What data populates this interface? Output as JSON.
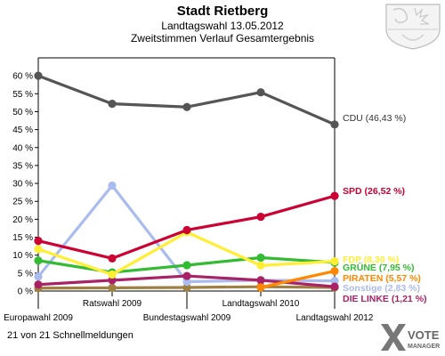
{
  "header": {
    "title": "Stadt Rietberg",
    "subtitle1": "Landtagswahl 13.05.2012",
    "subtitle2": "Zweitstimmen Verlauf Gesamtergebnis"
  },
  "footer": {
    "note": "21 von 21 Schnellmeldungen"
  },
  "brand": {
    "line1": "VOTE",
    "line2": "MANAGER"
  },
  "chart_data": {
    "type": "line",
    "title": "Stadt Rietberg",
    "subtitle": "Landtagswahl 13.05.2012 / Zweitstimmen Verlauf Gesamtergebnis",
    "categories": [
      "Europawahl 2009",
      "Ratswahl 2009",
      "Bundestagswahl 2009",
      "Landtagswahl 2010",
      "Landtagswahl 2012"
    ],
    "ylim": [
      0,
      65
    ],
    "yticks": [
      0,
      5,
      10,
      15,
      20,
      25,
      30,
      35,
      40,
      45,
      50,
      55,
      60
    ],
    "y_tick_suffix": " %",
    "grid": false,
    "series": [
      {
        "name": "CDU",
        "color": "#555555",
        "values": [
          60.0,
          52.2,
          51.3,
          55.4,
          46.43
        ],
        "label": "CDU (46,43 %)"
      },
      {
        "name": "SPD",
        "color": "#cc0033",
        "values": [
          14.0,
          9.1,
          17.0,
          20.7,
          26.52
        ],
        "label": "SPD (26,52 %)"
      },
      {
        "name": "FDP",
        "color": "#ffee33",
        "values": [
          11.7,
          4.6,
          16.4,
          7.1,
          8.3
        ],
        "label": "FDP (8,30 %)"
      },
      {
        "name": "GRÜNE",
        "color": "#33bb33",
        "values": [
          8.5,
          5.2,
          7.2,
          9.3,
          7.95
        ],
        "label": "GRÜNE (7,95 %)"
      },
      {
        "name": "PIRATEN",
        "color": "#ff8800",
        "values": [
          null,
          null,
          null,
          1.0,
          5.57
        ],
        "label": "PIRATEN (5,57 %)"
      },
      {
        "name": "Sonstige",
        "color": "#aabbee",
        "values": [
          4.0,
          29.4,
          2.6,
          3.0,
          2.83
        ],
        "label": "Sonstige (2,83 %)"
      },
      {
        "name": "DIE LINKE",
        "color": "#aa2266",
        "values": [
          1.8,
          3.0,
          4.2,
          3.0,
          1.21
        ],
        "label": "DIE LINKE (1,21 %)"
      },
      {
        "name": "",
        "color": "#a08040",
        "values": [
          0.8,
          0.9,
          1.0,
          1.2,
          1.0
        ],
        "label": ""
      }
    ]
  }
}
